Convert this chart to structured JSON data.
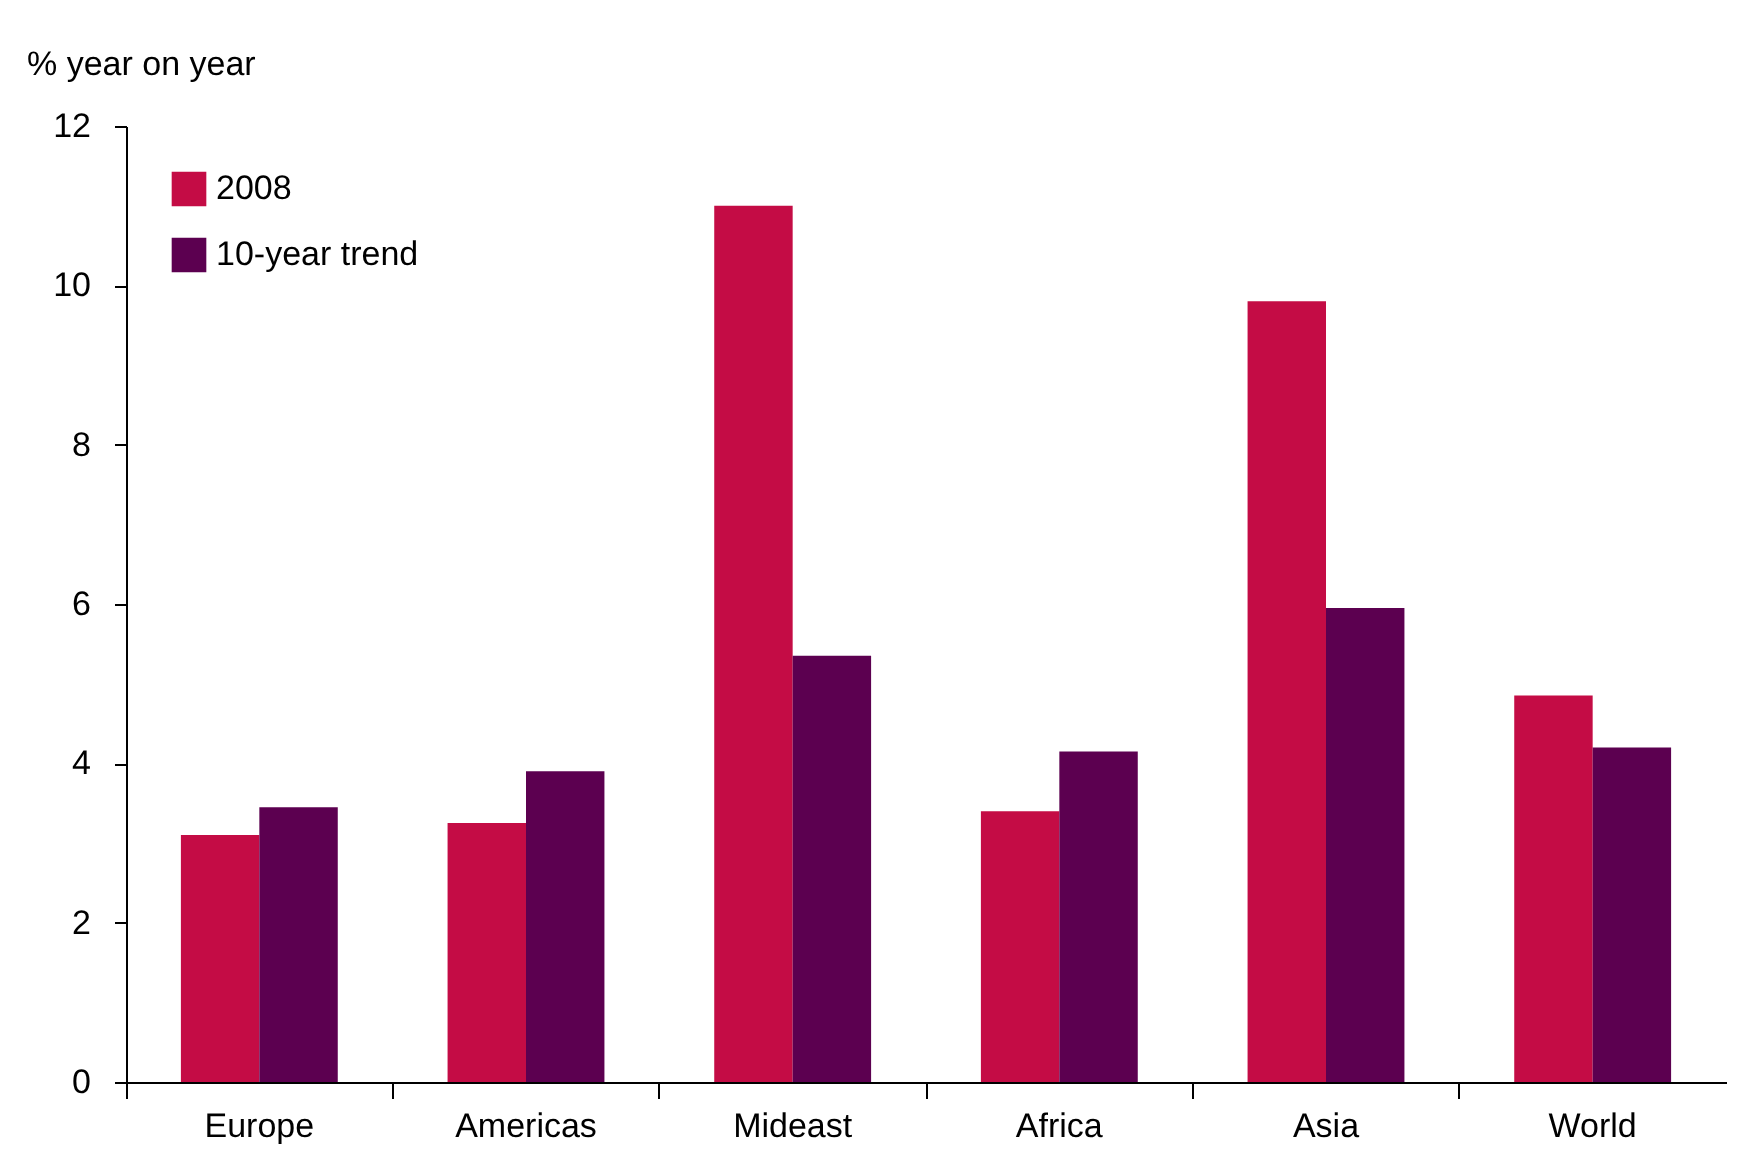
{
  "chart_data": {
    "type": "bar",
    "ylabel": "% year on year",
    "categories": [
      "Europe",
      "Americas",
      "Mideast",
      "Africa",
      "Asia",
      "World"
    ],
    "series": [
      {
        "name": "2008",
        "color": "#c40c45",
        "values": [
          3.1,
          3.25,
          11.0,
          3.4,
          9.8,
          4.85
        ]
      },
      {
        "name": "10-year trend",
        "color": "#5c0050",
        "values": [
          3.45,
          3.9,
          5.35,
          4.15,
          5.95,
          4.2
        ]
      }
    ],
    "ylim": [
      0,
      12
    ],
    "yticks": [
      0,
      2,
      4,
      6,
      8,
      10,
      12
    ],
    "grid": false,
    "legend": "top left"
  }
}
